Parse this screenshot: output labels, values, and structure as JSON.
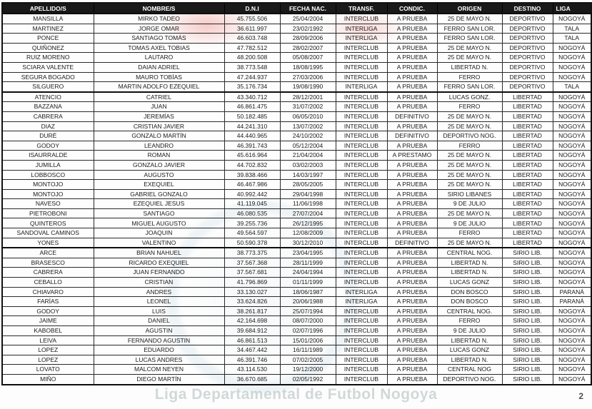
{
  "document": {
    "watermark_text": "Liga Departamental de Futbol Nogoya",
    "page_number": "2"
  },
  "colors": {
    "header_bg": "#191919",
    "header_text": "#ffffff",
    "border": "#111111",
    "watermark_red": "#e8554b",
    "watermark_blue": "#a5c6d6"
  },
  "table": {
    "columns": [
      {
        "key": "apellido",
        "label": "APELLIDO/S"
      },
      {
        "key": "nombre",
        "label": "NOMBRE/S"
      },
      {
        "key": "dni",
        "label": "D.N.I"
      },
      {
        "key": "fecha_nac",
        "label": "FECHA NAC."
      },
      {
        "key": "transf",
        "label": "TRANSF."
      },
      {
        "key": "condic",
        "label": "CONDIC."
      },
      {
        "key": "origen",
        "label": "ORIGEN"
      },
      {
        "key": "destino",
        "label": "DESTINO"
      },
      {
        "key": "liga",
        "label": "LIGA"
      }
    ],
    "groups": [
      {
        "name": "deportivo",
        "rows": [
          [
            "MANSILLA",
            "MIRKO TADEO",
            "45.755.506",
            "25/04/2004",
            "INTERCLUB",
            "A PRUEBA",
            "25 DE MAYO N.",
            "DEPORTIVO",
            "NOGOYÁ"
          ],
          [
            "MARTINEZ",
            "JORGE OMAR",
            "36.611.997",
            "23/02/1992",
            "INTERLIGA",
            "A PRUEBA",
            "FERRO SAN LOR.",
            "DEPORTIVO",
            "TALA"
          ],
          [
            "PONCE",
            "SANTIAGO TOMÁS",
            "46.603.748",
            "28/09/2006",
            "INTERLIGA",
            "A PRUEBA",
            "FERRO SAN LOR.",
            "DEPORTIVO",
            "TALA"
          ],
          [
            "QUIÑONEZ",
            "TOMAS AXEL TOBIAS",
            "47.782.512",
            "28/02/2007",
            "INTERCLUB",
            "A PRUEBA",
            "25 DE MAYO N.",
            "DEPORTIVO",
            "NOGOYÁ"
          ],
          [
            "RUIZ MORENO",
            "LAUTARO",
            "48.200.508",
            "05/08/2007",
            "INTERCLUB",
            "A PRUEBA",
            "25 DE MAYO N.",
            "DEPORTIVO",
            "NOGOYÁ"
          ],
          [
            "SCIARA VALENTE",
            "DAIAN ADRIEL",
            "38.773.548",
            "18/08/1995",
            "INTERCLUB",
            "A PRUEBA",
            "LIBERTAD N.",
            "DEPORTIVO",
            "NOGOYÁ"
          ],
          [
            "SEGURA BOGADO",
            "MAURO TOBÍAS",
            "47.244.937",
            "27/03/2006",
            "INTERCLUB",
            "A PRUEBA",
            "FERRO",
            "DEPORTIVO",
            "NOGOYÁ"
          ],
          [
            "SILGUERO",
            "MARTIN ADOLFO EZEQUIEL",
            "35.176.734",
            "19/08/1990",
            "INTERLIGA",
            "A PRUEBA",
            "FERRO SAN LOR.",
            "DEPORTIVO",
            "TALA"
          ]
        ]
      },
      {
        "name": "libertad",
        "rows": [
          [
            "ATENCIO",
            "CATRIEL",
            "43.340.712",
            "28/12/2001",
            "INTERCLUB",
            "A PRUEBA",
            "LUCAS GONZ.",
            "LIBERTAD",
            "NOGOYÁ"
          ],
          [
            "BAZZANA",
            "JUAN",
            "46.861.475",
            "31/07/2002",
            "INTERCLUB",
            "A PRUEBA",
            "FERRO",
            "LIBERTAD",
            "NOGOYÁ"
          ],
          [
            "CABRERA",
            "JEREMÍAS",
            "50.182.485",
            "06/05/2010",
            "INTERCLUB",
            "DEFINITIVO",
            "25 DE MAYO N.",
            "LIBERTAD",
            "NOGOYÁ"
          ],
          [
            "DIAZ",
            "CRISTIAN JAVIER",
            "44.241.310",
            "13/07/2002",
            "INTERCLUB",
            "A PRUEBA",
            "25 DE MAYO N.",
            "LIBERTAD",
            "NOGOYÁ"
          ],
          [
            "DURÉ",
            "GONZALO MARTÍN",
            "44.440.965",
            "24/10/2002",
            "INTERCLUB",
            "DEFINITIVO",
            "DEPORTIVO NOG.",
            "LIBERTAD",
            "NOGOYÁ"
          ],
          [
            "GODOY",
            "LEANDRO",
            "46.391.743",
            "05/12/2004",
            "INTERCLUB",
            "A PRUEBA",
            "FERRO",
            "LIBERTAD",
            "NOGOYÁ"
          ],
          [
            "ISAURRALDE",
            "ROMAN",
            "45.616.964",
            "21/04/2004",
            "INTERCLUB",
            "A PRESTAMO",
            "25 DE MAYO N.",
            "LIBERTAD",
            "NOGOYÁ"
          ],
          [
            "JUMILLA",
            "GONZALO JAVIER",
            "44.702.832",
            "03/02/2003",
            "INTERCLUB",
            "A PRUEBA",
            "25 DE MAYO N.",
            "LIBERTAD",
            "NOGOYÁ"
          ],
          [
            "LOBBOSCO",
            "AUGUSTO",
            "39.838.466",
            "14/03/1997",
            "INTERCLUB",
            "A PRUEBA",
            "25 DE MAYO N.",
            "LIBERTAD",
            "NOGOYÁ"
          ],
          [
            "MONTOJO",
            "EXEQUIEL",
            "46.467.986",
            "28/05/2005",
            "INTERCLUB",
            "A PRUEBA",
            "25 DE MAYO N.",
            "LIBERTAD",
            "NOGOYÁ"
          ],
          [
            "MONTOJO",
            "GABRIEL GONZALO",
            "40.992.442",
            "29/04/1998",
            "INTERCLUB",
            "A PRUEBA",
            "SIRIO LIBANES",
            "LIBERTAD",
            "NOGOYÁ"
          ],
          [
            "NAVESO",
            "EZEQUIEL JESUS",
            "41.119.045",
            "11/06/1998",
            "INTERCLUB",
            "A PRUEBA",
            "9 DE JULIO",
            "LIBERTAD",
            "NOGOYÁ"
          ],
          [
            "PIETROBONI",
            "SANTIAGO",
            "46.080.535",
            "27/07/2004",
            "INTERCLUB",
            "A PRUEBA",
            "25 DE MAYO N.",
            "LIBERTAD",
            "NOGOYÁ"
          ],
          [
            "QUINTEROS",
            "MIGUEL AUGUSTO",
            "39.255.736",
            "26/12/1995",
            "INTERCLUB",
            "A PRUEBA",
            "9 DE JULIO",
            "LIBERTAD",
            "NOGOYÁ"
          ],
          [
            "SANDOVAL CAMINOS",
            "JOAQUIN",
            "49.564.597",
            "12/08/2009",
            "INTERCLUB",
            "A PRUEBA",
            "FERRO",
            "LIBERTAD",
            "NOGOYÁ"
          ],
          [
            "YONES",
            "VALENTINO",
            "50.590.378",
            "30/12/2010",
            "INTERCLUB",
            "DEFINITIVO",
            "25 DE MAYO N.",
            "LIBERTAD",
            "NOGOYÁ"
          ]
        ]
      },
      {
        "name": "sirio-lib",
        "rows": [
          [
            "ARCE",
            "BRIAN NAHUEL",
            "38.773.375",
            "23/04/1995",
            "INTERCLUB",
            "A PRUEBA",
            "CENTRAL NOG.",
            "SIRIO LIB.",
            "NOGOYÁ"
          ],
          [
            "BRASESCO",
            "RICARDO EXEQUIEL",
            "37.567.368",
            "28/11/1999",
            "INTERCLUB",
            "A PRUEBA",
            "LIBERTAD N.",
            "SIRIO LIB.",
            "NOGOYÁ"
          ],
          [
            "CABRERA",
            "JUAN FERNANDO",
            "37.567.681",
            "24/04/1994",
            "INTERCLUB",
            "A PRUEBA",
            "LIBERTAD N.",
            "SIRIO LIB.",
            "NOGOYÁ"
          ],
          [
            "CEBALLO",
            "CRISTIAN",
            "41.796.869",
            "01/11/1999",
            "INTERCLUB",
            "A PRUEBA",
            "LUCAS GONZ",
            "SIRIO LIB.",
            "NOGOYÁ"
          ],
          [
            "CHIAVARO",
            "ANDRES",
            "33.130.027",
            "18/06/1987",
            "INTERLIGA",
            "A PRUEBA",
            "DON BOSCO",
            "SIRIO LIB.",
            "PARANÁ"
          ],
          [
            "FARÍAS",
            "LEONEL",
            "33.624.826",
            "20/06/1988",
            "INTERLIGA",
            "A PRUEBA",
            "DON BOSCO",
            "SIRIO LIB.",
            "PARANÁ"
          ],
          [
            "GODOY",
            "LUIS",
            "38.261.817",
            "25/07/1994",
            "INTERCLUB",
            "A PRUEBA",
            "CENTRAL NOG.",
            "SIRIO LIB.",
            "NOGOYÁ"
          ],
          [
            "JAIME",
            "DANIEL",
            "42.164.698",
            "08/07/2000",
            "INTERCLUB",
            "A PRUEBA",
            "FERRO",
            "SIRIO LIB.",
            "NOGOYÁ"
          ],
          [
            "KABOBEL",
            "AGUSTIN",
            "39.684.912",
            "02/07/1996",
            "INTERCLUB",
            "A PRUEBA",
            "9 DE JULIO",
            "SIRIO LIB.",
            "NOGOYÁ"
          ],
          [
            "LEIVA",
            "FERNANDO AGUSTIN",
            "46.861.513",
            "15/01/2006",
            "INTERCLUB",
            "A PRUEBA",
            "LIBERTAD N.",
            "SIRIO LIB.",
            "NOGOYÁ"
          ],
          [
            "LOPEZ",
            "EDUARDO",
            "34.467.442",
            "16/11/1989",
            "INTERCLUB",
            "A PRUEBA",
            "LUCAS GONZ",
            "SIRIO LIB.",
            "NOGOYÁ"
          ],
          [
            "LOPEZ",
            "LUCAS ANDRES",
            "46.391.746",
            "07/02/2005",
            "INTERCLUB",
            "A PRUEBA",
            "LIBERTAD N.",
            "SIRIO LIB.",
            "NOGOYÁ"
          ],
          [
            "LOVATO",
            "MALCOM NEYEN",
            "43.114.530",
            "19/12/2000",
            "INTERCLUB",
            "A PRUEBA",
            "CENTRAL NOG",
            "SIRIO LIB.",
            "NOGOYÁ"
          ],
          [
            "MIÑO",
            "DIEGO MARTÍN",
            "36.670.685",
            "02/05/1992",
            "INTERCLUB",
            "A PRUEBA",
            "DEPORTIVO NOG.",
            "SIRIO LIB.",
            "NOGOYÁ"
          ]
        ]
      }
    ]
  }
}
